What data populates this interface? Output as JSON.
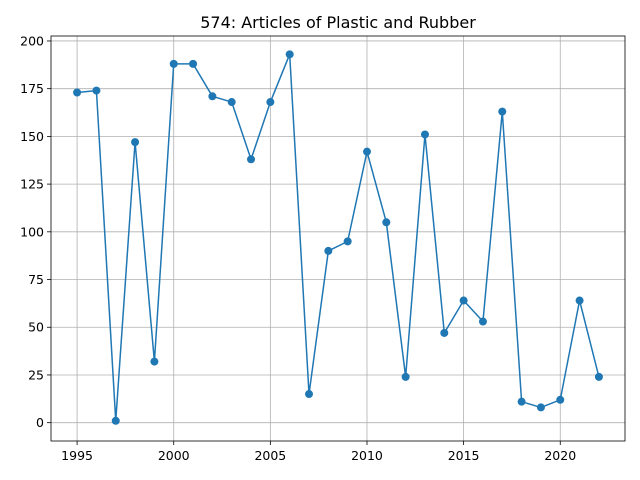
{
  "colors": {
    "series": "#1f77b4",
    "grid": "#b0b0b0",
    "background": "#ffffff"
  },
  "chart_data": {
    "type": "line",
    "title": "574: Articles of Plastic and Rubber",
    "xlabel": "",
    "ylabel": "",
    "xlim": [
      1993.65,
      2023.35
    ],
    "ylim": [
      -9.6,
      202.6
    ],
    "grid": true,
    "marker": "circle",
    "xticks": [
      1995,
      2000,
      2005,
      2010,
      2015,
      2020
    ],
    "yticks": [
      0,
      25,
      50,
      75,
      100,
      125,
      150,
      175,
      200
    ],
    "x": [
      1995,
      1996,
      1997,
      1998,
      1999,
      2000,
      2001,
      2002,
      2003,
      2004,
      2005,
      2006,
      2007,
      2008,
      2009,
      2010,
      2011,
      2012,
      2013,
      2014,
      2015,
      2016,
      2017,
      2018,
      2019,
      2020,
      2021,
      2022
    ],
    "series": [
      {
        "values": [
          173,
          174,
          1,
          147,
          32,
          188,
          188,
          171,
          168,
          138,
          168,
          193,
          15,
          90,
          95,
          142,
          105,
          24,
          151,
          47,
          64,
          53,
          163,
          11,
          8,
          12,
          64,
          24
        ]
      }
    ]
  }
}
